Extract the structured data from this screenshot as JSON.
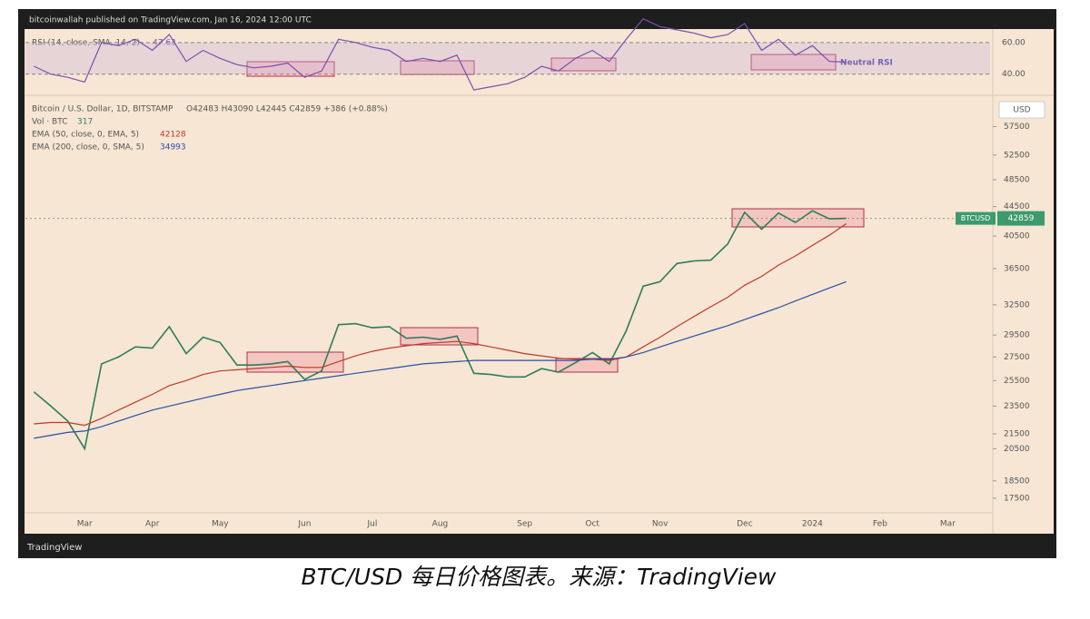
{
  "header": "bitcoinwallah published on TradingView.com, Jan 16, 2024 12:00 UTC",
  "chart_data": [
    {
      "type": "line",
      "title": "Bitcoin / U.S. Dollar, 1D, BITSTAMP",
      "ohlc": "O42483 H43090 L42445 C42859 +386 (+0.88%)",
      "volume_label": "Vol · BTC",
      "volume_value": 317,
      "currency": "USD",
      "symbol": "BTCUSD",
      "log_scale": true,
      "grid": false,
      "categories": [
        null,
        null,
        null,
        "Mar",
        null,
        null,
        null,
        "Apr",
        null,
        null,
        null,
        "May",
        null,
        null,
        null,
        null,
        "Jun",
        null,
        null,
        null,
        "Jul",
        null,
        null,
        null,
        "Aug",
        null,
        null,
        null,
        null,
        "Sep",
        null,
        null,
        null,
        "Oct",
        null,
        null,
        null,
        "Nov",
        null,
        null,
        null,
        null,
        "Dec",
        null,
        null,
        null,
        "2024",
        null,
        null,
        null,
        "Feb",
        null,
        null,
        null,
        "Mar",
        null,
        null
      ],
      "series": [
        {
          "name": "Bitcoin / U.S. Dollar, 1D, BITSTAMP",
          "color": "#2e7d5b",
          "values": [
            24600,
            23500,
            22400,
            20500,
            26900,
            27500,
            28400,
            28300,
            30300,
            27800,
            29300,
            28800,
            26800,
            26800,
            26900,
            27100,
            25600,
            26300,
            30500,
            30600,
            30200,
            30300,
            29200,
            29300,
            29100,
            29400,
            26100,
            26000,
            25800,
            25800,
            26500,
            26200,
            27000,
            27900,
            26900,
            29900,
            34500,
            35000,
            37100,
            37400,
            37500,
            39500,
            43700,
            41400,
            43600,
            42300,
            43900,
            42800,
            42859,
            null,
            null,
            null,
            null,
            null,
            null,
            null,
            null
          ]
        },
        {
          "name": "EMA (50, close, 0, EMA, 5)",
          "color": "#c0392b",
          "values": [
            22200,
            22300,
            22300,
            22100,
            22600,
            23200,
            23800,
            24400,
            25100,
            25500,
            26000,
            26300,
            26400,
            26500,
            26600,
            26700,
            26600,
            26600,
            27100,
            27600,
            28000,
            28300,
            28500,
            28700,
            28800,
            28900,
            28700,
            28400,
            28100,
            27800,
            27600,
            27400,
            27300,
            27300,
            27200,
            27500,
            28400,
            29300,
            30300,
            31300,
            32300,
            33300,
            34600,
            35600,
            36900,
            38000,
            39300,
            40600,
            42128,
            null,
            null,
            null,
            null,
            null,
            null,
            null,
            null
          ]
        },
        {
          "name": "EMA (200, close, 0, SMA, 5)",
          "color": "#2b4fa8",
          "values": [
            21200,
            21400,
            21600,
            21700,
            22000,
            22400,
            22800,
            23200,
            23500,
            23800,
            24100,
            24400,
            24700,
            24900,
            25100,
            25300,
            25500,
            25700,
            25900,
            26100,
            26300,
            26500,
            26700,
            26900,
            27000,
            27100,
            27200,
            27200,
            27200,
            27200,
            27200,
            27200,
            27200,
            27300,
            27300,
            27500,
            27900,
            28400,
            28900,
            29400,
            29900,
            30400,
            31000,
            31600,
            32200,
            32900,
            33600,
            34300,
            34993,
            null,
            null,
            null,
            null,
            null,
            null,
            null,
            null
          ]
        }
      ],
      "ylim": [
        16700,
        63000
      ],
      "yticks": [
        17500,
        18500,
        20500,
        21500,
        23500,
        25500,
        27500,
        29500,
        32500,
        36500,
        40500,
        44500,
        48500,
        52500,
        57500
      ]
    },
    {
      "type": "line",
      "title": "RSI (14, close, SMA, 14, 2)",
      "annotation": "Neutral RSI",
      "color": "#7b4fb0",
      "values": [
        45,
        40,
        38,
        35,
        60,
        58,
        62,
        55,
        65,
        48,
        55,
        50,
        46,
        44,
        45,
        47,
        38,
        42,
        62,
        60,
        57,
        55,
        48,
        50,
        48,
        52,
        30,
        32,
        34,
        38,
        45,
        42,
        50,
        55,
        48,
        62,
        75,
        70,
        68,
        66,
        63,
        65,
        72,
        55,
        62,
        52,
        58,
        48,
        47.63,
        null,
        null,
        null,
        null,
        null,
        null,
        null,
        null
      ],
      "ylim": [
        29.5,
        68.5
      ],
      "yticks": [
        {
          "value": 60,
          "label": "60.00"
        },
        {
          "value": 40,
          "label": "40.00"
        }
      ]
    }
  ],
  "logo": "TradingView",
  "caption": "BTC/USD 每日价格图表。来源：TradingView"
}
